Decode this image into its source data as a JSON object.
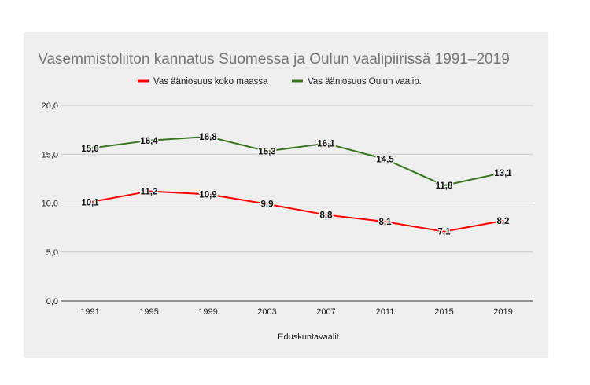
{
  "chart_data": {
    "type": "line",
    "title": "Vasemmistoliiton kannatus Suomessa ja Oulun vaalipiirissä 1991–2019",
    "xlabel": "Eduskuntavaalit",
    "ylabel": "",
    "categories": [
      "1991",
      "1995",
      "1999",
      "2003",
      "2007",
      "2011",
      "2015",
      "2019"
    ],
    "ylim": [
      0,
      20
    ],
    "yticks": [
      0,
      5,
      10,
      15,
      20
    ],
    "ytick_labels": [
      "0,0",
      "5,0",
      "10,0",
      "15,0",
      "20,0"
    ],
    "grid": true,
    "legend_position": "top-center",
    "series": [
      {
        "name": "Vas ääniosuus koko maassa",
        "color": "#ff0000",
        "values": [
          10.1,
          11.2,
          10.9,
          9.9,
          8.8,
          8.1,
          7.1,
          8.2
        ],
        "labels": [
          "10,1",
          "11,2",
          "10,9",
          "9,9",
          "8,8",
          "8,1",
          "7,1",
          "8,2"
        ]
      },
      {
        "name": "Vas ääniosuus Oulun vaalip.",
        "color": "#38761d",
        "values": [
          15.6,
          16.4,
          16.8,
          15.3,
          16.1,
          14.5,
          11.8,
          13.1
        ],
        "labels": [
          "15,6",
          "16,4",
          "16,8",
          "15,3",
          "16,1",
          "14,5",
          "11,8",
          "13,1"
        ]
      }
    ]
  }
}
